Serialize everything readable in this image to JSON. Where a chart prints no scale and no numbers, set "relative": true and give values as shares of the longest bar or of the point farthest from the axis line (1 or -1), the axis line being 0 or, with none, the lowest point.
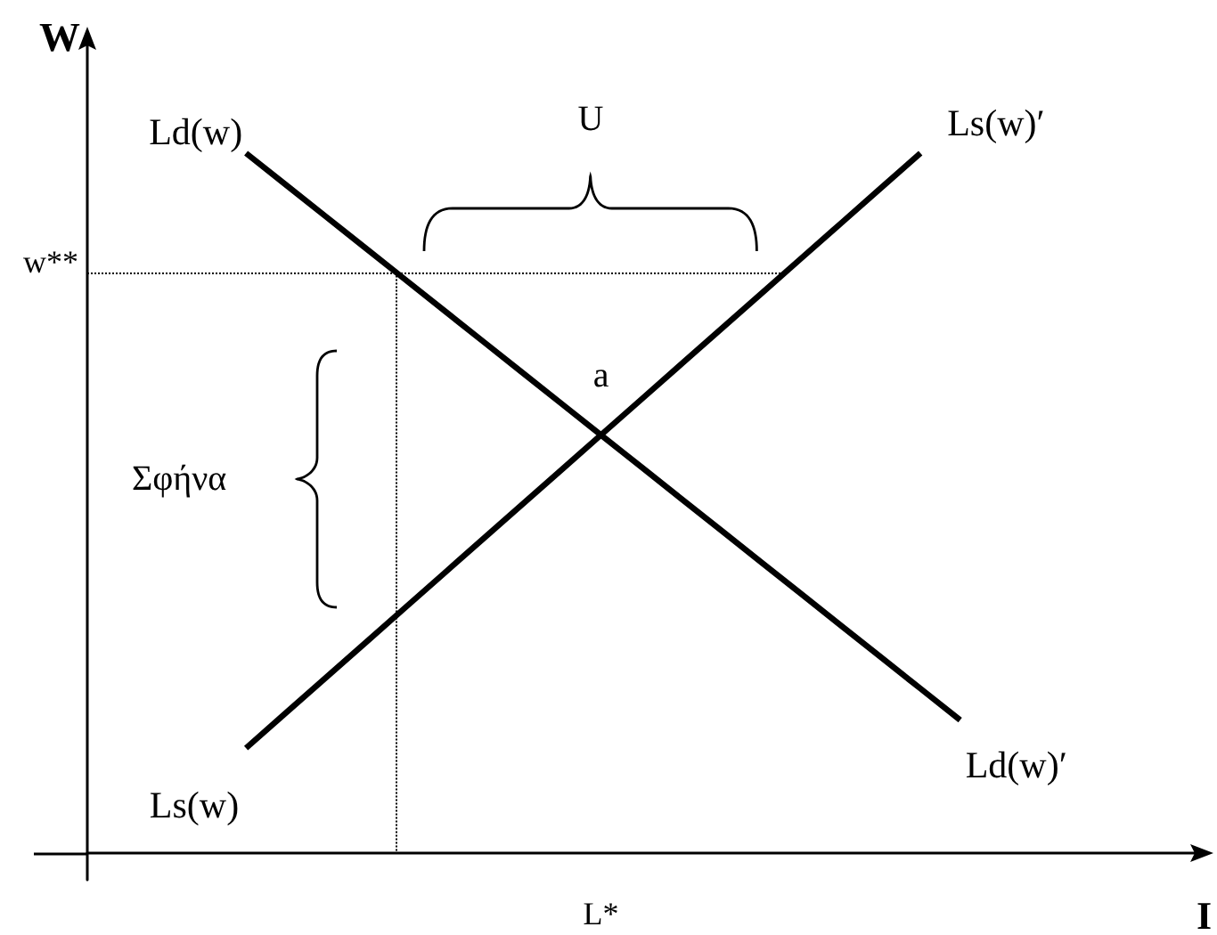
{
  "chart_data": {
    "type": "line",
    "relative": true,
    "xlabel": "I",
    "ylabel": "W",
    "marker": "none",
    "categories": [
      null,
      null,
      null,
      null,
      null,
      null,
      null,
      null,
      null,
      null,
      null,
      null,
      null,
      null,
      null,
      null,
      null,
      null,
      null,
      null,
      null,
      null,
      null,
      null,
      null,
      null,
      null,
      null,
      null
    ],
    "series": [
      {
        "name": "Ld(w)",
        "color": "#000000",
        "values": [
          null,
          null,
          null,
          null,
          1,
          0.955,
          0.91,
          0.865,
          0.82,
          0.775,
          0.73,
          0.685,
          0.64,
          0.595,
          0.55,
          0.505,
          0.46,
          0.415,
          0.37,
          0.325,
          0.28,
          0.235,
          0.19,
          null,
          null,
          null,
          null,
          null,
          null
        ]
      },
      {
        "name": "Ls(w)",
        "color": "#000000",
        "values": [
          null,
          null,
          null,
          null,
          0.15,
          0.2,
          0.25,
          0.3,
          0.35,
          0.4,
          0.45,
          0.5,
          0.55,
          0.6,
          0.65,
          0.7,
          0.75,
          0.8,
          0.85,
          0.9,
          0.95,
          1,
          null,
          null,
          null,
          null,
          null,
          null,
          null
        ]
      }
    ],
    "ref_lines": [
      {
        "axis": "y",
        "value": 0.83,
        "label": "w**",
        "line_style": "dotted",
        "color": "#000000"
      }
    ],
    "annotations": [
      {
        "text": "a",
        "y": 0.6
      },
      "L*",
      "U",
      "Σφήνα",
      "Ld(w)′",
      "Ls(w)′"
    ]
  }
}
